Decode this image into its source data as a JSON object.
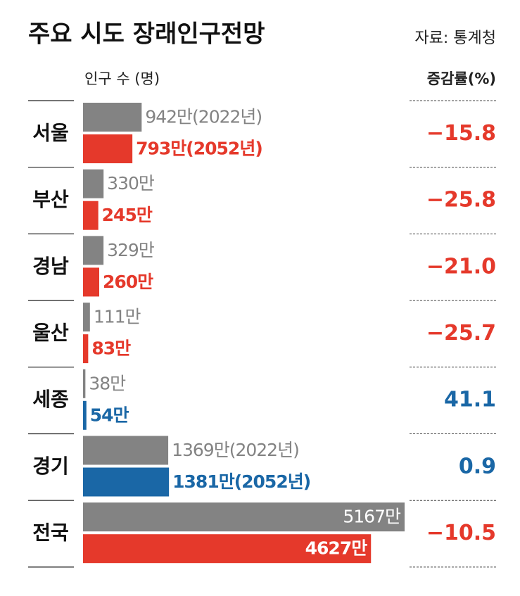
{
  "chart_data": {
    "type": "paired-bar",
    "title": "주요 시도 장래인구전망",
    "source": "자료: 통계청",
    "value_header": "인구 수 (명)",
    "change_header": "증감률(%)",
    "categories": [
      "서울",
      "부산",
      "경남",
      "울산",
      "세종",
      "경기",
      "전국"
    ],
    "series": [
      {
        "color": "#838383",
        "values": [
          942,
          330,
          329,
          111,
          38,
          1369,
          5167
        ],
        "value_labels": [
          "942만(2022년)",
          "330만",
          "329만",
          "111만",
          "38만",
          "1369만(2022년)",
          "5167만"
        ]
      },
      {
        "colors": [
          "#e5392b",
          "#e5392b",
          "#e5392b",
          "#e5392b",
          "#1a67a6",
          "#1a67a6",
          "#e5392b"
        ],
        "values": [
          793,
          245,
          260,
          83,
          54,
          1381,
          4627
        ],
        "value_labels": [
          "793만(2052년)",
          "245만",
          "260만",
          "83만",
          "54만",
          "1381만(2052년)",
          "4627만"
        ]
      }
    ],
    "change": {
      "values": [
        -15.8,
        -25.8,
        -21.0,
        -25.7,
        41.1,
        0.9,
        -10.5
      ],
      "value_labels": [
        "−15.8",
        "−25.8",
        "−21.0",
        "−25.7",
        "41.1",
        "0.9",
        "−10.5"
      ]
    }
  }
}
